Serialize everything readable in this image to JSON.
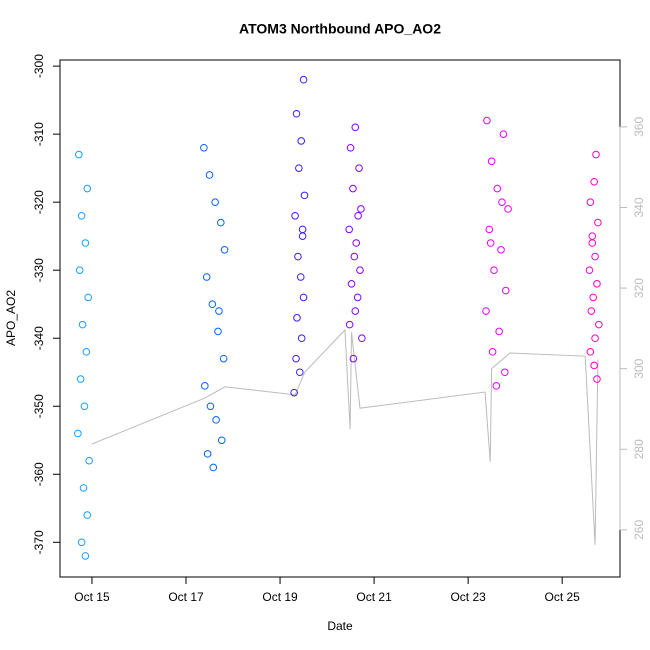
{
  "chart_data": {
    "type": "scatter",
    "title": "ATOM3 Northbound APO_AO2",
    "x_label": "Date",
    "y_label": "APO_AO2",
    "xlim": [
      14.32,
      26.23
    ],
    "xticks": [
      {
        "value": 15,
        "label": "Oct 15"
      },
      {
        "value": 17,
        "label": "Oct 17"
      },
      {
        "value": 19,
        "label": "Oct 19"
      },
      {
        "value": 21,
        "label": "Oct 21"
      },
      {
        "value": 23,
        "label": "Oct 23"
      },
      {
        "value": 25,
        "label": "Oct 25"
      }
    ],
    "ylim": [
      -375.1,
      -299.1
    ],
    "yticks": [
      -370,
      -360,
      -350,
      -340,
      -330,
      -320,
      -310,
      -300
    ],
    "y2lim": [
      248.3,
      376.6
    ],
    "y2ticks": [
      260,
      280,
      300,
      320,
      340,
      360
    ],
    "y2color": "#bbbbbb",
    "series": [
      {
        "type": "line",
        "axis": "y2",
        "color": "#bbbbbb",
        "x": [
          15.0,
          17.4,
          17.83,
          19.32,
          19.53,
          20.38,
          20.49,
          20.52,
          20.7,
          23.36,
          23.47,
          23.5,
          23.89,
          25.49,
          25.7,
          25.76
        ],
        "values": [
          281.3,
          292.7,
          295.5,
          293.5,
          299.2,
          309.6,
          285.0,
          309.0,
          290.2,
          294.2,
          276.9,
          300.0,
          303.9,
          303.1,
          256.3,
          302.2
        ]
      },
      {
        "color": "#1a9fff",
        "x": [
          14.72,
          14.9,
          14.78,
          14.86,
          14.74,
          14.92,
          14.8,
          14.88,
          14.76,
          14.84,
          14.7,
          14.94,
          14.82,
          14.9,
          14.78,
          14.86
        ],
        "values": [
          -313,
          -318,
          -322,
          -326,
          -330,
          -334,
          -338,
          -342,
          -346,
          -350,
          -354,
          -358,
          -362,
          -366,
          -370,
          -372
        ]
      },
      {
        "color": "#0a62ff",
        "x": [
          17.38,
          17.5,
          17.62,
          17.74,
          17.82,
          17.44,
          17.56,
          17.68,
          17.8,
          17.4,
          17.52,
          17.64,
          17.76,
          17.46,
          17.58,
          17.7
        ],
        "values": [
          -312,
          -316,
          -320,
          -323,
          -327,
          -331,
          -335,
          -339,
          -343,
          -347,
          -350,
          -352,
          -355,
          -357,
          -359,
          -336
        ]
      },
      {
        "color": "#3a1dff",
        "x": [
          19.5,
          19.35,
          19.45,
          19.4,
          19.52,
          19.32,
          19.48,
          19.38,
          19.44,
          19.5,
          19.36,
          19.46,
          19.34,
          19.42,
          19.3,
          19.48
        ],
        "values": [
          -302,
          -307,
          -311,
          -315,
          -319,
          -322,
          -325,
          -328,
          -331,
          -334,
          -337,
          -340,
          -343,
          -345,
          -348,
          -324
        ]
      },
      {
        "color": "#8800ff",
        "x": [
          20.6,
          20.5,
          20.68,
          20.55,
          20.72,
          20.47,
          20.62,
          20.58,
          20.7,
          20.52,
          20.65,
          20.6,
          20.48,
          20.74,
          20.56,
          20.66
        ],
        "values": [
          -309,
          -312,
          -315,
          -318,
          -321,
          -324,
          -326,
          -328,
          -330,
          -332,
          -334,
          -336,
          -338,
          -340,
          -343,
          -322
        ]
      },
      {
        "color": "#ee00ff",
        "x": [
          23.4,
          23.75,
          23.5,
          23.62,
          23.85,
          23.45,
          23.7,
          23.55,
          23.8,
          23.38,
          23.66,
          23.52,
          23.78,
          23.6,
          23.48,
          23.72
        ],
        "values": [
          -308,
          -310,
          -314,
          -318,
          -321,
          -324,
          -327,
          -330,
          -333,
          -336,
          -339,
          -342,
          -345,
          -347,
          -326,
          -320
        ]
      },
      {
        "color": "#ff00cc",
        "x": [
          25.72,
          25.68,
          25.6,
          25.76,
          25.64,
          25.7,
          25.58,
          25.74,
          25.66,
          25.62,
          25.78,
          25.7,
          25.6,
          25.68,
          25.74,
          25.64
        ],
        "values": [
          -313,
          -317,
          -320,
          -323,
          -326,
          -328,
          -330,
          -332,
          -334,
          -336,
          -338,
          -340,
          -342,
          -344,
          -346,
          -325
        ]
      }
    ]
  }
}
